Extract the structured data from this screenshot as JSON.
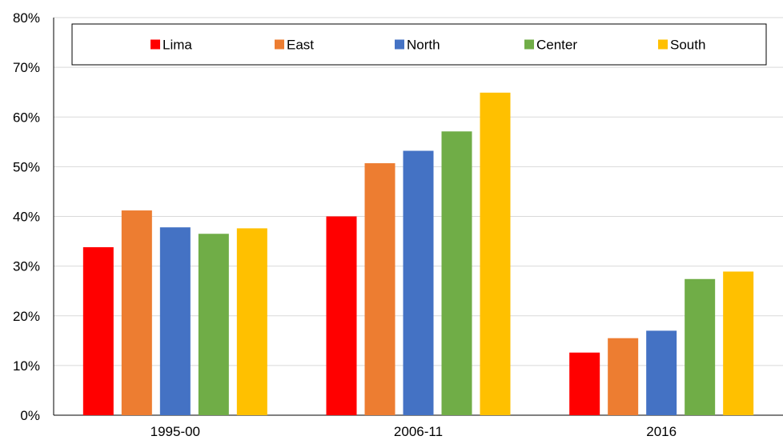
{
  "chart_data": {
    "type": "bar",
    "categories": [
      "1995-00",
      "2006-11",
      "2016"
    ],
    "series": [
      {
        "name": "Lima",
        "color": "#ff0000",
        "values": [
          33.8,
          40.0,
          12.6
        ]
      },
      {
        "name": "East",
        "color": "#ed7d31",
        "values": [
          41.2,
          50.7,
          15.5
        ]
      },
      {
        "name": "North",
        "color": "#4472c4",
        "values": [
          37.8,
          53.2,
          17.0
        ]
      },
      {
        "name": "Center",
        "color": "#70ad47",
        "values": [
          36.5,
          57.1,
          27.4
        ]
      },
      {
        "name": "South",
        "color": "#ffc000",
        "values": [
          37.6,
          64.9,
          28.9
        ]
      }
    ],
    "ylim": [
      0,
      80
    ],
    "yticks": [
      "0%",
      "10%",
      "20%",
      "30%",
      "40%",
      "50%",
      "60%",
      "70%",
      "80%"
    ],
    "grid": true,
    "legend_position": "top"
  }
}
